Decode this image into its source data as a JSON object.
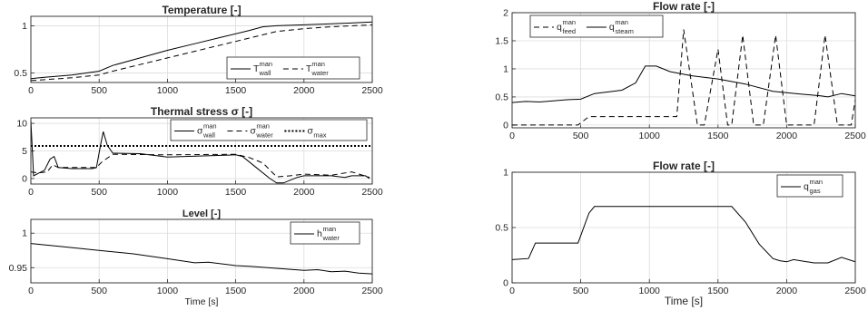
{
  "chart_data": [
    {
      "type": "line",
      "title": "Temperature [-]",
      "xlabel": "",
      "ylabel": "",
      "xlim": [
        0,
        2500
      ],
      "ylim": [
        0.4,
        1.1
      ],
      "xticks": [
        "0",
        "500",
        "1000",
        "1500",
        "2000",
        "2500"
      ],
      "yticks": [
        "0.5",
        "1"
      ],
      "legend": "bottom-right",
      "grid": true,
      "series": [
        {
          "name": "T_wall^man",
          "legend_main": "T",
          "legend_sub": "wall",
          "legend_sup": "man",
          "style": "solid",
          "points": [
            [
              0,
              0.44
            ],
            [
              100,
              0.455
            ],
            [
              300,
              0.48
            ],
            [
              500,
              0.52
            ],
            [
              600,
              0.58
            ],
            [
              800,
              0.66
            ],
            [
              1000,
              0.74
            ],
            [
              1200,
              0.81
            ],
            [
              1400,
              0.88
            ],
            [
              1600,
              0.95
            ],
            [
              1700,
              0.99
            ],
            [
              1800,
              1.0
            ],
            [
              2000,
              1.01
            ],
            [
              2200,
              1.02
            ],
            [
              2500,
              1.04
            ]
          ]
        },
        {
          "name": "T_water^man",
          "legend_main": "T",
          "legend_sub": "water",
          "legend_sup": "man",
          "style": "dashed",
          "points": [
            [
              0,
              0.42
            ],
            [
              100,
              0.43
            ],
            [
              300,
              0.45
            ],
            [
              500,
              0.48
            ],
            [
              600,
              0.52
            ],
            [
              800,
              0.59
            ],
            [
              1000,
              0.66
            ],
            [
              1200,
              0.73
            ],
            [
              1400,
              0.8
            ],
            [
              1600,
              0.87
            ],
            [
              1800,
              0.94
            ],
            [
              2000,
              0.97
            ],
            [
              2200,
              0.99
            ],
            [
              2500,
              1.01
            ]
          ]
        }
      ]
    },
    {
      "type": "line",
      "title": "Thermal stress σ [-]",
      "xlabel": "",
      "ylabel": "",
      "xlim": [
        0,
        2500
      ],
      "ylim": [
        -1,
        11
      ],
      "xticks": [
        "0",
        "500",
        "1000",
        "1500",
        "2000",
        "2500"
      ],
      "yticks": [
        "0",
        "5",
        "10"
      ],
      "yticks_values": [
        0,
        5,
        10
      ],
      "legend": "top-right",
      "grid": true,
      "series": [
        {
          "name": "σ_wall^man",
          "legend_main": "σ",
          "legend_sub": "wall",
          "legend_sup": "man",
          "style": "solid",
          "points": [
            [
              0,
              10.5
            ],
            [
              20,
              0.5
            ],
            [
              60,
              1.0
            ],
            [
              100,
              1.5
            ],
            [
              140,
              3.5
            ],
            [
              170,
              4.0
            ],
            [
              200,
              2.0
            ],
            [
              300,
              1.8
            ],
            [
              450,
              1.8
            ],
            [
              480,
              2.0
            ],
            [
              510,
              6.0
            ],
            [
              530,
              8.5
            ],
            [
              560,
              6.0
            ],
            [
              600,
              4.6
            ],
            [
              800,
              4.5
            ],
            [
              1000,
              3.9
            ],
            [
              1500,
              4.3
            ],
            [
              1550,
              4.0
            ],
            [
              1650,
              2.0
            ],
            [
              1750,
              0.0
            ],
            [
              1800,
              -0.8
            ],
            [
              1850,
              -0.8
            ],
            [
              1950,
              0.2
            ],
            [
              2000,
              0.5
            ],
            [
              2200,
              0.5
            ],
            [
              2300,
              0.2
            ],
            [
              2350,
              0.5
            ],
            [
              2450,
              0.5
            ],
            [
              2480,
              0.0
            ]
          ]
        },
        {
          "name": "σ_water^man",
          "legend_main": "σ",
          "legend_sub": "water",
          "legend_sup": "man",
          "style": "dashed",
          "points": [
            [
              0,
              1.2
            ],
            [
              50,
              1.0
            ],
            [
              120,
              1.2
            ],
            [
              160,
              2.5
            ],
            [
              200,
              2.0
            ],
            [
              480,
              2.0
            ],
            [
              520,
              3.0
            ],
            [
              600,
              4.4
            ],
            [
              1000,
              4.3
            ],
            [
              1500,
              4.4
            ],
            [
              1600,
              3.8
            ],
            [
              1700,
              2.8
            ],
            [
              1800,
              0.3
            ],
            [
              1900,
              0.5
            ],
            [
              2000,
              0.8
            ],
            [
              2200,
              0.6
            ],
            [
              2350,
              1.2
            ],
            [
              2480,
              0.2
            ]
          ]
        },
        {
          "name": "σ_max",
          "legend_main": "σ",
          "legend_sub": "max",
          "legend_sup": "",
          "style": "dotted",
          "points": [
            [
              0,
              5.9
            ],
            [
              2500,
              5.9
            ]
          ]
        }
      ]
    },
    {
      "type": "line",
      "title": "Level [-]",
      "xlabel": "Time [s]",
      "ylabel": "",
      "xlim": [
        0,
        2500
      ],
      "ylim": [
        0.928,
        1.02
      ],
      "xticks": [
        "0",
        "500",
        "1000",
        "1500",
        "2000",
        "2500"
      ],
      "yticks": [
        "0.95",
        "1"
      ],
      "yticks_values": [
        0.95,
        1.0
      ],
      "legend": "top-right",
      "grid": true,
      "series": [
        {
          "name": "h_water^man",
          "legend_main": "h",
          "legend_sub": "water",
          "legend_sup": "man",
          "style": "solid",
          "points": [
            [
              0,
              0.985
            ],
            [
              250,
              0.98
            ],
            [
              500,
              0.975
            ],
            [
              750,
              0.97
            ],
            [
              1000,
              0.963
            ],
            [
              1200,
              0.957
            ],
            [
              1300,
              0.958
            ],
            [
              1500,
              0.953
            ],
            [
              1600,
              0.952
            ],
            [
              1800,
              0.949
            ],
            [
              2000,
              0.946
            ],
            [
              2100,
              0.947
            ],
            [
              2200,
              0.944
            ],
            [
              2300,
              0.945
            ],
            [
              2400,
              0.942
            ],
            [
              2500,
              0.941
            ]
          ]
        }
      ]
    },
    {
      "type": "line",
      "title": "Flow rate [-]",
      "xlabel": "",
      "ylabel": "",
      "xlim": [
        0,
        2500
      ],
      "ylim": [
        -0.05,
        2
      ],
      "xticks": [
        "0",
        "500",
        "1000",
        "1500",
        "2000",
        "2500"
      ],
      "yticks": [
        "0",
        "0.5",
        "1",
        "1.5",
        "2"
      ],
      "yticks_values": [
        0,
        0.5,
        1,
        1.5,
        2
      ],
      "legend": "top-left",
      "grid": true,
      "series": [
        {
          "name": "q_feed^man",
          "legend_main": "q",
          "legend_sub": "feed",
          "legend_sup": "man",
          "style": "dashed",
          "points": [
            [
              0,
              0.0
            ],
            [
              480,
              0.0
            ],
            [
              560,
              0.15
            ],
            [
              1150,
              0.15
            ],
            [
              1200,
              0.15
            ],
            [
              1250,
              1.7
            ],
            [
              1350,
              0.0
            ],
            [
              1400,
              0.0
            ],
            [
              1500,
              1.35
            ],
            [
              1570,
              0.0
            ],
            [
              1600,
              0.0
            ],
            [
              1680,
              1.6
            ],
            [
              1760,
              0.0
            ],
            [
              1830,
              0.0
            ],
            [
              1920,
              1.6
            ],
            [
              2000,
              0.0
            ],
            [
              2200,
              0.0
            ],
            [
              2280,
              1.6
            ],
            [
              2370,
              0.0
            ],
            [
              2470,
              0.0
            ],
            [
              2500,
              0.45
            ]
          ]
        },
        {
          "name": "q_steam^man",
          "legend_main": "q",
          "legend_sub": "steam",
          "legend_sup": "man",
          "style": "solid",
          "points": [
            [
              0,
              0.4
            ],
            [
              100,
              0.42
            ],
            [
              200,
              0.41
            ],
            [
              400,
              0.45
            ],
            [
              500,
              0.46
            ],
            [
              600,
              0.56
            ],
            [
              800,
              0.62
            ],
            [
              900,
              0.75
            ],
            [
              970,
              1.05
            ],
            [
              1050,
              1.05
            ],
            [
              1150,
              0.95
            ],
            [
              1300,
              0.88
            ],
            [
              1500,
              0.82
            ],
            [
              1700,
              0.73
            ],
            [
              1900,
              0.6
            ],
            [
              2100,
              0.55
            ],
            [
              2250,
              0.52
            ],
            [
              2300,
              0.5
            ],
            [
              2400,
              0.56
            ],
            [
              2500,
              0.52
            ]
          ]
        }
      ]
    },
    {
      "type": "line",
      "title": "Flow rate [-]",
      "xlabel": "Time [s]",
      "ylabel": "",
      "xlim": [
        0,
        2500
      ],
      "ylim": [
        0,
        1
      ],
      "xticks": [
        "0",
        "500",
        "1000",
        "1500",
        "2000",
        "2500"
      ],
      "yticks": [
        "0",
        "0.5",
        "1"
      ],
      "yticks_values": [
        0,
        0.5,
        1
      ],
      "legend": "top-right",
      "grid": true,
      "series": [
        {
          "name": "q_gas^man",
          "legend_main": "q",
          "legend_sub": "gas",
          "legend_sup": "man",
          "style": "solid",
          "points": [
            [
              0,
              0.21
            ],
            [
              120,
              0.22
            ],
            [
              170,
              0.36
            ],
            [
              480,
              0.36
            ],
            [
              560,
              0.63
            ],
            [
              600,
              0.69
            ],
            [
              1000,
              0.69
            ],
            [
              1600,
              0.69
            ],
            [
              1700,
              0.55
            ],
            [
              1800,
              0.35
            ],
            [
              1900,
              0.22
            ],
            [
              1950,
              0.2
            ],
            [
              2000,
              0.19
            ],
            [
              2050,
              0.21
            ],
            [
              2200,
              0.18
            ],
            [
              2300,
              0.18
            ],
            [
              2400,
              0.23
            ],
            [
              2500,
              0.19
            ]
          ]
        }
      ]
    }
  ]
}
